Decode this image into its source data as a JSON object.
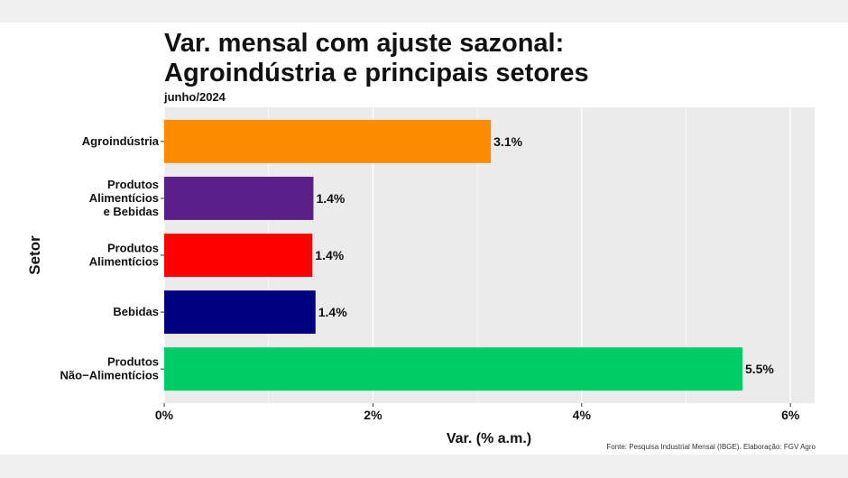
{
  "chart_data": {
    "type": "bar",
    "orientation": "horizontal",
    "title_line1": "Var. mensal com ajuste sazonal:",
    "title_line2": "Agroindústria e principais setores",
    "subtitle": "junho/2024",
    "xlabel": "Var. (% a.m.)",
    "ylabel": "Setor",
    "caption": "Fonte: Pesquisa Industrial Mensal (IBGE). Elaboração: FGV Agro",
    "xlim": [
      0,
      6.2
    ],
    "xticks": [
      0,
      2,
      4,
      6
    ],
    "xtick_labels": [
      "0%",
      "2%",
      "4%",
      "6%"
    ],
    "grid": true,
    "categories": [
      [
        "Agroindústria"
      ],
      [
        "Produtos",
        "Alimentícios",
        "e Bebidas"
      ],
      [
        "Produtos",
        "Alimentícios"
      ],
      [
        "Bebidas"
      ],
      [
        "Produtos",
        "Não−Alimentícios"
      ]
    ],
    "values": [
      3.13,
      1.43,
      1.42,
      1.45,
      5.54
    ],
    "data_labels": [
      "3.1%",
      "1.4%",
      "1.4%",
      "1.4%",
      "5.5%"
    ],
    "colors": [
      "#ff8c00",
      "#5b1f8a",
      "#ff0000",
      "#000080",
      "#00cc66"
    ],
    "panel_color": "#ebebeb"
  }
}
